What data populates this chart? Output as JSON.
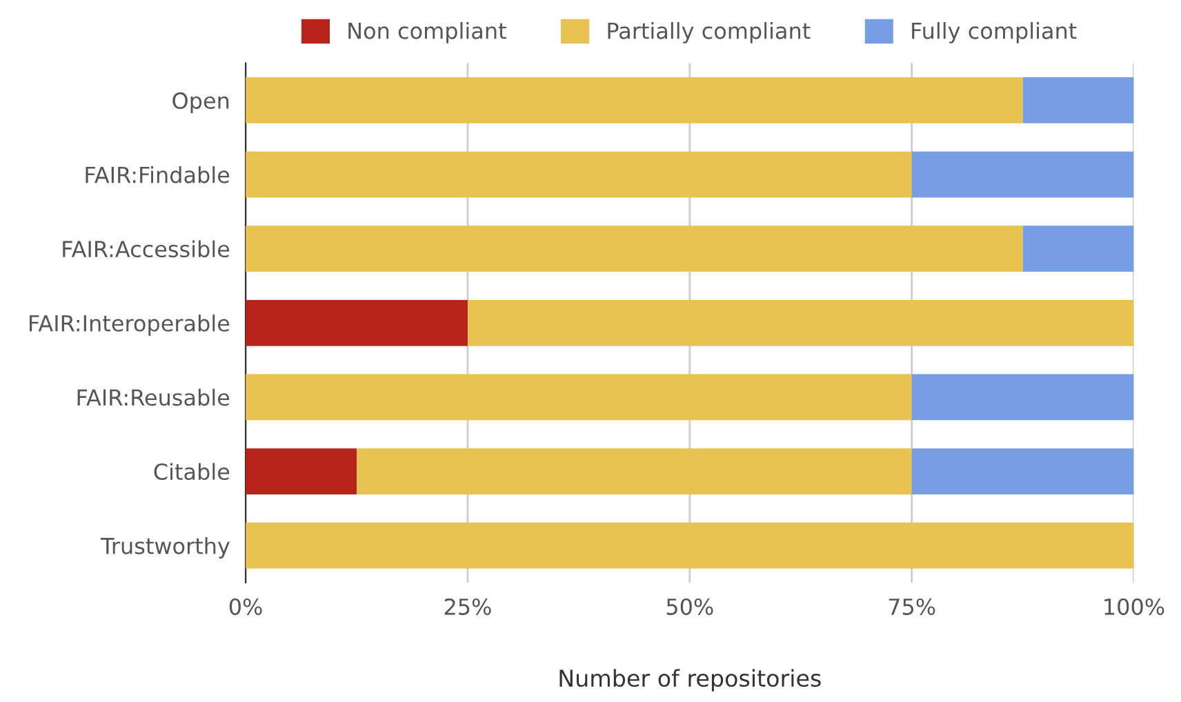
{
  "chart_data": {
    "type": "bar",
    "orientation": "horizontal",
    "stacked": true,
    "xlabel": "Number of repositories",
    "categories": [
      "Open",
      "FAIR:Findable",
      "FAIR:Accessible",
      "FAIR:Interoperable",
      "FAIR:Reusable",
      "Citable",
      "Trustworthy"
    ],
    "series": [
      {
        "name": "Non compliant",
        "color": "#b7241b",
        "values": [
          0,
          0,
          0,
          25,
          0,
          12.5,
          0
        ]
      },
      {
        "name": "Partially compliant",
        "color": "#e8c34f",
        "values": [
          87.5,
          75,
          87.5,
          75,
          75,
          62.5,
          100
        ]
      },
      {
        "name": "Fully compliant",
        "color": "#779ee5",
        "values": [
          12.5,
          25,
          12.5,
          0,
          25,
          25,
          0
        ]
      }
    ],
    "xlim": [
      0,
      100
    ],
    "xticks": [
      {
        "value": 0,
        "label": "0%"
      },
      {
        "value": 25,
        "label": "25%"
      },
      {
        "value": 50,
        "label": "50%"
      },
      {
        "value": 75,
        "label": "75%"
      },
      {
        "value": 100,
        "label": "100%"
      }
    ],
    "grid": "x",
    "legend": "top"
  }
}
